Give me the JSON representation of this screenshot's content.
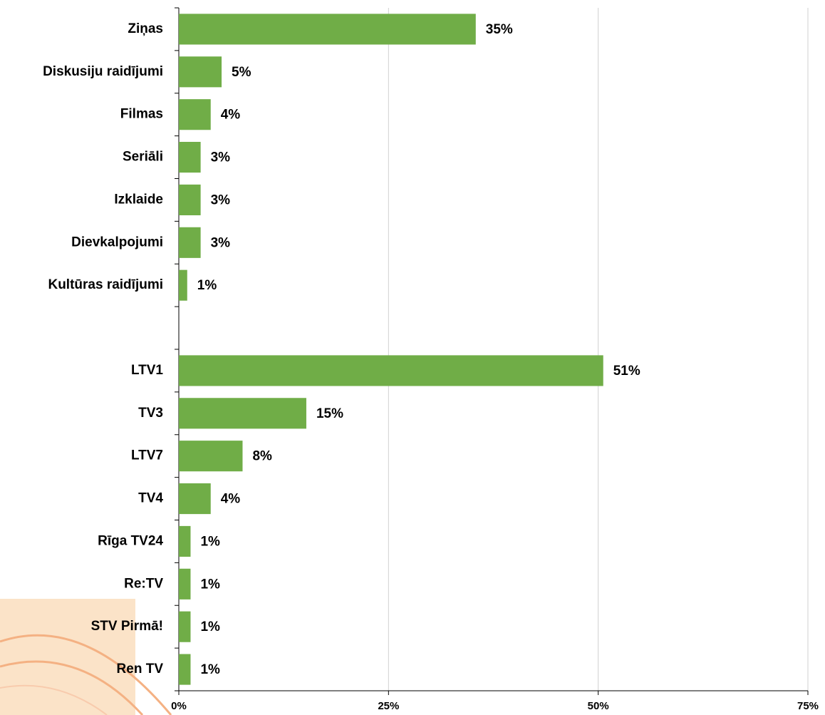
{
  "chart_data": {
    "type": "bar",
    "orientation": "horizontal",
    "categories": [
      "Ziņas",
      "Diskusiju raidījumi",
      "Filmas",
      "Seriāli",
      "Izklaide",
      "Dievkalpojumi",
      "Kultūras raidījumi",
      null,
      "LTV1",
      "TV3",
      "LTV7",
      "TV4",
      "Rīga TV24",
      "Re:TV",
      "STV Pirmā!",
      "Ren TV"
    ],
    "values": [
      35.4,
      5.1,
      3.8,
      2.6,
      2.6,
      2.6,
      1.0,
      null,
      50.6,
      15.2,
      7.6,
      3.8,
      1.4,
      1.4,
      1.4,
      1.4
    ],
    "value_labels": [
      "35%",
      "5%",
      "4%",
      "3%",
      "3%",
      "3%",
      "1%",
      null,
      "51%",
      "15%",
      "8%",
      "4%",
      "1%",
      "1%",
      "1%",
      "1%"
    ],
    "color": "#70ad47",
    "xlim": [
      0,
      75
    ],
    "xticks": [
      {
        "value": 0,
        "label": "0%"
      },
      {
        "value": 25,
        "label": "25%"
      },
      {
        "value": 50,
        "label": "50%"
      },
      {
        "value": 75,
        "label": "75%"
      }
    ],
    "grid": true
  }
}
